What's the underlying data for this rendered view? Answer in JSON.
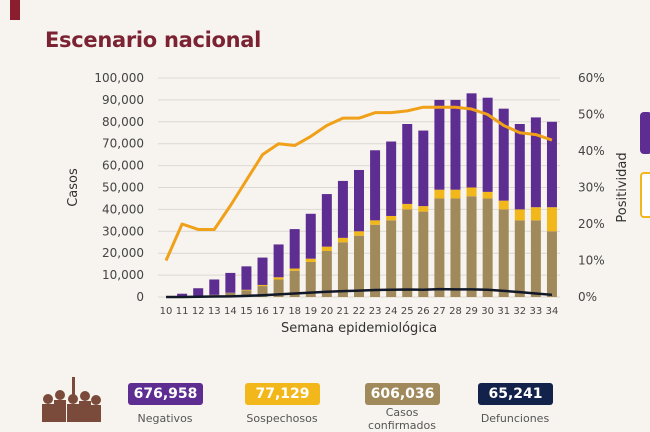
{
  "title": "Escenario nacional",
  "chart_data": {
    "type": "bar",
    "stacked": true,
    "xlabel": "Semana epidemiológica",
    "ylabel": "Casos",
    "y2label": "Positividad",
    "ylim": [
      0,
      100000
    ],
    "y2lim": [
      0,
      60
    ],
    "yticks": [
      "0",
      "10,000",
      "20,000",
      "30,000",
      "40,000",
      "50,000",
      "60,000",
      "70,000",
      "80,000",
      "90,000",
      "100,000"
    ],
    "y2ticks": [
      "0%",
      "10%",
      "20%",
      "30%",
      "40%",
      "50%",
      "60%"
    ],
    "categories": [
      "10",
      "11",
      "12",
      "13",
      "14",
      "15",
      "16",
      "17",
      "18",
      "19",
      "20",
      "21",
      "22",
      "23",
      "24",
      "25",
      "26",
      "27",
      "28",
      "29",
      "30",
      "31",
      "32",
      "33",
      "34"
    ],
    "series": [
      {
        "name": "Confirmados",
        "color": "#a08a5c",
        "values": [
          0,
          300,
          500,
          1000,
          2000,
          3000,
          5000,
          8000,
          12000,
          16000,
          21000,
          25000,
          28000,
          33000,
          35000,
          40000,
          39000,
          45000,
          45000,
          46000,
          45000,
          40000,
          35000,
          35000,
          30000
        ]
      },
      {
        "name": "Sospechosos",
        "color": "#f2b71a",
        "values": [
          0,
          0,
          0,
          0,
          0,
          300,
          500,
          1000,
          1000,
          1500,
          2000,
          2000,
          2000,
          2000,
          2000,
          2500,
          2500,
          4000,
          4000,
          4000,
          3000,
          4000,
          5000,
          6000,
          11000
        ]
      },
      {
        "name": "Negativos",
        "color": "#5e2d91",
        "values": [
          0,
          1200,
          3500,
          7000,
          9000,
          10700,
          12500,
          15000,
          18000,
          20500,
          24000,
          26000,
          28000,
          32000,
          34000,
          36500,
          34500,
          41000,
          41000,
          43000,
          43000,
          42000,
          39000,
          41000,
          39000
        ]
      }
    ],
    "lines": [
      {
        "name": "Defunciones",
        "color": "#111827",
        "axis": "left",
        "values": [
          0,
          0,
          100,
          200,
          300,
          500,
          800,
          1200,
          1600,
          2000,
          2400,
          2700,
          2900,
          3200,
          3300,
          3400,
          3300,
          3600,
          3500,
          3500,
          3300,
          2800,
          2200,
          1600,
          1000
        ]
      },
      {
        "name": "Positividad",
        "color": "#f0a019",
        "axis": "right",
        "values": [
          10,
          20,
          18.5,
          18.5,
          25,
          32,
          39,
          42,
          41.5,
          44,
          47,
          49,
          49,
          50.5,
          50.5,
          51,
          52,
          52,
          52,
          51.5,
          50,
          47,
          45,
          44.5,
          43
        ]
      }
    ]
  },
  "summary": [
    {
      "value": "676,958",
      "label": "Negativos",
      "color": "#5e2d91"
    },
    {
      "value": "77,129",
      "label": "Sospechosos",
      "color": "#f2b71a"
    },
    {
      "value": "606,036",
      "label": "Casos confirmados",
      "color": "#a08a5c"
    },
    {
      "value": "65,241",
      "label": "Defunciones",
      "color": "#13224a"
    }
  ]
}
